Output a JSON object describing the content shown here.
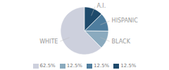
{
  "chart_data": {
    "type": "pie",
    "categories": [
      "WHITE",
      "BLACK",
      "HISPANIC",
      "A.I."
    ],
    "values": [
      62.5,
      12.5,
      12.5,
      12.5
    ],
    "value_labels": [
      "62.5%",
      "12.5%",
      "12.5%",
      "12.5%"
    ],
    "colors": [
      "#cdd0dd",
      "#8aaabe",
      "#4e7d9e",
      "#1e4a6b"
    ],
    "legend": "bottom"
  }
}
